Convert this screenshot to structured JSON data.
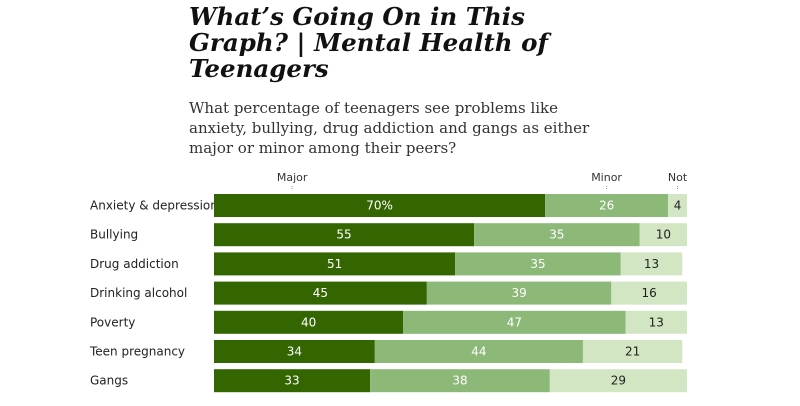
{
  "title": "What’s Going On in This Graph? | Mental Health of Teenagers",
  "subtitle": "What percentage of teenagers see problems like anxiety, bullying, drug addiction and gangs as either major or minor among their peers?",
  "colors": {
    "major": "#336600",
    "minor": "#8cb878",
    "not": "#d3e6c4"
  },
  "chart_data": {
    "type": "bar",
    "stacked": true,
    "orientation": "horizontal",
    "title": "What’s Going On in This Graph? | Mental Health of Teenagers",
    "categories": [
      "Anxiety & depression",
      "Bullying",
      "Drug addiction",
      "Drinking alcohol",
      "Poverty",
      "Teen pregnancy",
      "Gangs"
    ],
    "series": [
      {
        "name": "Major",
        "values": [
          70,
          55,
          51,
          45,
          40,
          34,
          33
        ]
      },
      {
        "name": "Minor",
        "values": [
          26,
          35,
          35,
          39,
          47,
          44,
          38
        ]
      },
      {
        "name": "Not",
        "values": [
          4,
          10,
          13,
          16,
          13,
          21,
          29
        ]
      }
    ],
    "value_labels": [
      [
        "70%",
        "55",
        "51",
        "45",
        "40",
        "34",
        "33"
      ],
      [
        "26",
        "35",
        "35",
        "39",
        "47",
        "44",
        "38"
      ],
      [
        "4",
        "10",
        "13",
        "16",
        "13",
        "21",
        "29"
      ]
    ],
    "xlim": [
      0,
      100
    ]
  }
}
